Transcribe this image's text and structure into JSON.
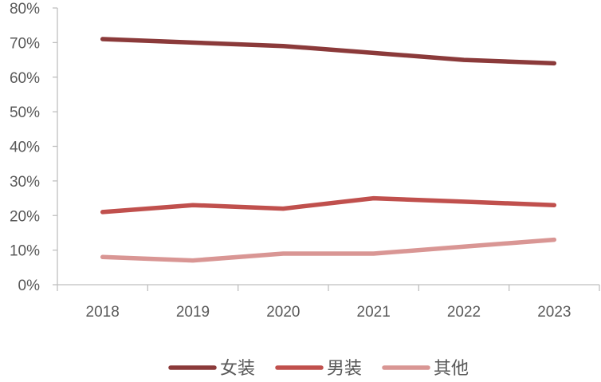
{
  "chart_data": {
    "type": "line",
    "categories": [
      "2018",
      "2019",
      "2020",
      "2021",
      "2022",
      "2023"
    ],
    "series": [
      {
        "name": "女装",
        "values": [
          0.71,
          0.7,
          0.69,
          0.67,
          0.65,
          0.64
        ],
        "color": "#8b3a3a"
      },
      {
        "name": "男装",
        "values": [
          0.21,
          0.23,
          0.22,
          0.25,
          0.24,
          0.23
        ],
        "color": "#c0504d"
      },
      {
        "name": "其他",
        "values": [
          0.08,
          0.07,
          0.09,
          0.09,
          0.11,
          0.13
        ],
        "color": "#d99694"
      }
    ],
    "ylim": [
      0,
      0.8
    ],
    "yticks": [
      0,
      0.1,
      0.2,
      0.3,
      0.4,
      0.5,
      0.6,
      0.7,
      0.8
    ],
    "ytick_labels": [
      "0%",
      "10%",
      "20%",
      "30%",
      "40%",
      "50%",
      "60%",
      "70%",
      "80%"
    ],
    "grid": false,
    "legend_position": "bottom"
  }
}
